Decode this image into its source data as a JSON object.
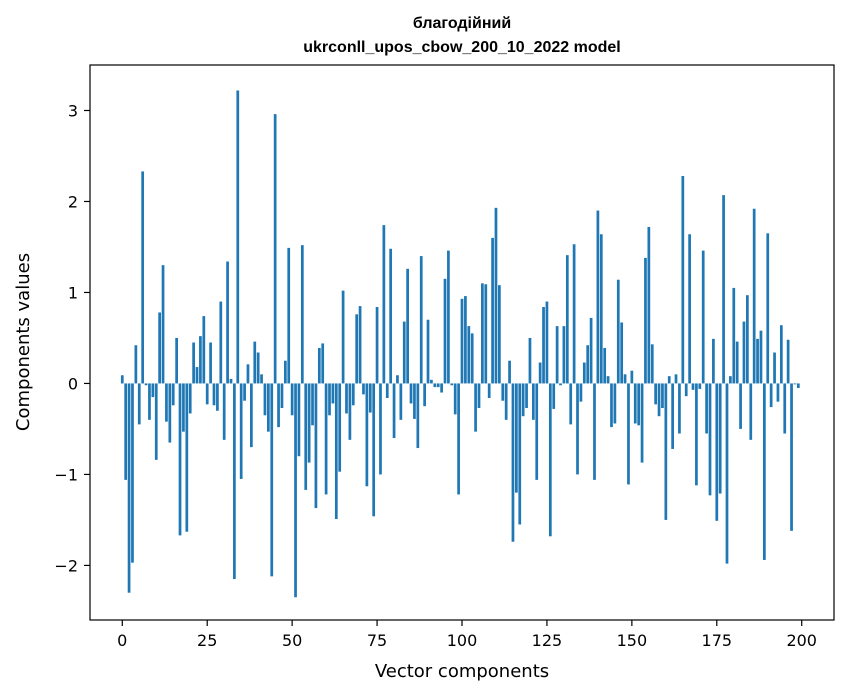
{
  "chart_data": {
    "type": "bar",
    "title": "благодійний",
    "subtitle": "ukrconll_upos_cbow_200_10_2022 model",
    "xlabel": "Vector components",
    "ylabel": "Components values",
    "xlim": [
      -9.5,
      209.5
    ],
    "ylim": [
      -2.6,
      3.5
    ],
    "xticks": [
      0,
      25,
      50,
      75,
      100,
      125,
      150,
      175,
      200
    ],
    "yticks": [
      -2,
      -1,
      0,
      1,
      2,
      3
    ],
    "ytick_labels": [
      "−2",
      "−1",
      "0",
      "1",
      "2",
      "3"
    ],
    "grid": false,
    "bar_color": "#1f77b4",
    "values": [
      0.09,
      -1.06,
      -2.3,
      -1.97,
      0.42,
      -0.45,
      2.33,
      -0.02,
      -0.4,
      -0.15,
      -0.84,
      0.78,
      1.3,
      -0.42,
      -0.65,
      -0.24,
      0.5,
      -1.67,
      -0.53,
      -1.63,
      -0.33,
      0.45,
      0.18,
      0.52,
      0.74,
      -0.23,
      0.45,
      -0.24,
      -0.3,
      0.9,
      -0.62,
      1.34,
      0.05,
      -2.15,
      3.22,
      -1.05,
      -0.19,
      0.21,
      -0.7,
      0.46,
      0.34,
      0.1,
      -0.35,
      -0.53,
      -2.12,
      2.96,
      -0.48,
      -0.27,
      0.25,
      1.49,
      -0.35,
      -2.35,
      -0.8,
      1.52,
      -1.17,
      -0.87,
      -0.46,
      -1.37,
      0.39,
      0.44,
      -1.22,
      -0.35,
      -0.22,
      -1.49,
      -0.97,
      1.02,
      -0.33,
      -0.62,
      -0.24,
      0.76,
      0.85,
      -0.12,
      -1.13,
      -0.32,
      -1.46,
      0.84,
      -1.0,
      1.74,
      -0.16,
      1.48,
      -0.6,
      0.09,
      -0.4,
      0.68,
      1.26,
      -0.22,
      -0.39,
      -0.71,
      1.4,
      -0.25,
      0.7,
      0.04,
      -0.04,
      -0.04,
      -0.1,
      1.15,
      1.46,
      -0.02,
      -0.34,
      -1.22,
      0.93,
      0.96,
      0.63,
      0.55,
      -0.53,
      -0.27,
      1.1,
      1.09,
      -0.16,
      1.6,
      1.93,
      1.08,
      -0.19,
      -0.4,
      0.25,
      -1.74,
      -1.2,
      -1.55,
      -0.36,
      -0.27,
      0.5,
      -0.4,
      -1.06,
      0.23,
      0.84,
      0.9,
      -1.68,
      -0.28,
      0.63,
      -0.02,
      0.63,
      1.41,
      -0.45,
      1.53,
      -1.0,
      -0.2,
      0.23,
      0.42,
      0.72,
      -1.06,
      1.9,
      1.64,
      0.39,
      0.08,
      -0.48,
      -0.44,
      1.14,
      0.67,
      0.1,
      -1.11,
      0.14,
      -0.44,
      -0.46,
      -0.87,
      1.38,
      1.72,
      0.43,
      -0.23,
      -0.36,
      -0.27,
      -1.5,
      0.08,
      -0.72,
      0.1,
      -0.55,
      2.28,
      -0.14,
      1.64,
      -0.07,
      -1.12,
      -0.06,
      1.46,
      -0.55,
      -1.23,
      0.49,
      -1.51,
      -1.21,
      2.07,
      -1.98,
      0.08,
      1.05,
      0.46,
      -0.5,
      0.68,
      0.97,
      -0.62,
      1.92,
      0.49,
      0.58,
      -1.94,
      1.65,
      -0.26,
      0.34,
      -0.2,
      0.64,
      -0.55,
      0.48,
      -1.62,
      -0.01,
      -0.05
    ]
  }
}
